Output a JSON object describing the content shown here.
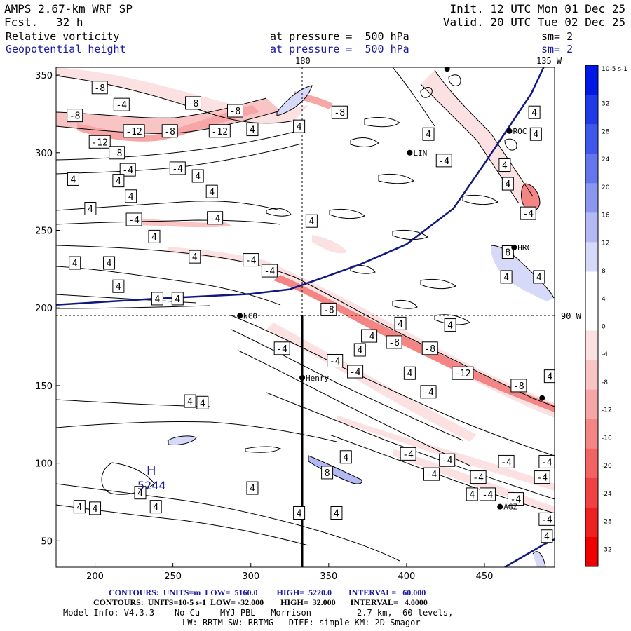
{
  "header": {
    "title": "AMPS 2.67-km WRF SP",
    "fcst_label": "Fcst.",
    "fcst_value": "32 h",
    "init": "Init. 12 UTC Mon 01 Dec 25",
    "valid": "Valid. 20 UTC Tue 02 Dec 25",
    "field1": "Relative vorticity",
    "field2": "Geopotential height",
    "level1": "at pressure =  500 hPa",
    "level2": "at pressure =  500 hPa",
    "sm1": "sm= 2",
    "sm2": "sm= 2"
  },
  "map_labels": {
    "top_180": "180",
    "top_135w": "135 W",
    "right_90w": "90 W",
    "high_letter": "H",
    "high_value": "5244"
  },
  "stations": [
    {
      "name": "ROC",
      "x": 466,
      "y": 314
    },
    {
      "name": "LIN",
      "x": 402,
      "y": 300
    },
    {
      "name": "HRC",
      "x": 469,
      "y": 239
    },
    {
      "name": "NCO",
      "x": 293,
      "y": 195
    },
    {
      "name": "Henry",
      "x": 333,
      "y": 155
    },
    {
      "name": "AGZ",
      "x": 460,
      "y": 72
    },
    {
      "name": "",
      "x": 487,
      "y": 142
    },
    {
      "name": "",
      "x": 426,
      "y": 354
    }
  ],
  "contour_labels": [
    {
      "v": "-8",
      "x": 203,
      "y": 342
    },
    {
      "v": "-4",
      "x": 217,
      "y": 331
    },
    {
      "v": "-8",
      "x": 263,
      "y": 332
    },
    {
      "v": "-8",
      "x": 290,
      "y": 327
    },
    {
      "v": "-8",
      "x": 187,
      "y": 324
    },
    {
      "v": "-12",
      "x": 225,
      "y": 314
    },
    {
      "v": "-8",
      "x": 248,
      "y": 314
    },
    {
      "v": "-12",
      "x": 280,
      "y": 314
    },
    {
      "v": "-12",
      "x": 203,
      "y": 307
    },
    {
      "v": "-8",
      "x": 214,
      "y": 300
    },
    {
      "v": "4",
      "x": 301,
      "y": 315
    },
    {
      "v": "4",
      "x": 331,
      "y": 317
    },
    {
      "v": "-8",
      "x": 357,
      "y": 326
    },
    {
      "v": "-4",
      "x": 253,
      "y": 290
    },
    {
      "v": "-4",
      "x": 221,
      "y": 289
    },
    {
      "v": "4",
      "x": 186,
      "y": 283
    },
    {
      "v": "4",
      "x": 215,
      "y": 282
    },
    {
      "v": "4",
      "x": 223,
      "y": 272
    },
    {
      "v": "4",
      "x": 266,
      "y": 285
    },
    {
      "v": "4",
      "x": 275,
      "y": 275
    },
    {
      "v": "-4",
      "x": 225,
      "y": 257
    },
    {
      "v": "-4",
      "x": 277,
      "y": 258
    },
    {
      "v": "4",
      "x": 197,
      "y": 264
    },
    {
      "v": "4",
      "x": 238,
      "y": 246
    },
    {
      "v": "4",
      "x": 187,
      "y": 229
    },
    {
      "v": "4",
      "x": 209,
      "y": 229
    },
    {
      "v": "-4",
      "x": 300,
      "y": 231
    },
    {
      "v": "-4",
      "x": 312,
      "y": 224
    },
    {
      "v": "4",
      "x": 264,
      "y": 233
    },
    {
      "v": "4",
      "x": 215,
      "y": 214
    },
    {
      "v": "4",
      "x": 240,
      "y": 206
    },
    {
      "v": "4",
      "x": 253,
      "y": 206
    },
    {
      "v": "4",
      "x": 339,
      "y": 256
    },
    {
      "v": "-8",
      "x": 350,
      "y": 199
    },
    {
      "v": "4",
      "x": 414,
      "y": 312
    },
    {
      "v": "4",
      "x": 482,
      "y": 326
    },
    {
      "v": "-4",
      "x": 424,
      "y": 295
    },
    {
      "v": "4",
      "x": 483,
      "y": 312
    },
    {
      "v": "4",
      "x": 463,
      "y": 292
    },
    {
      "v": "4",
      "x": 465,
      "y": 280
    },
    {
      "v": "-4",
      "x": 478,
      "y": 261
    },
    {
      "v": "8",
      "x": 465,
      "y": 236
    },
    {
      "v": "4",
      "x": 464,
      "y": 220
    },
    {
      "v": "4",
      "x": 485,
      "y": 220
    },
    {
      "v": "4",
      "x": 396,
      "y": 190
    },
    {
      "v": "-4",
      "x": 376,
      "y": 182
    },
    {
      "v": "-8",
      "x": 392,
      "y": 178
    },
    {
      "v": "4",
      "x": 428,
      "y": 189
    },
    {
      "v": "-8",
      "x": 415,
      "y": 174
    },
    {
      "v": "-4",
      "x": 320,
      "y": 174
    },
    {
      "v": "4",
      "x": 370,
      "y": 173
    },
    {
      "v": "-4",
      "x": 354,
      "y": 166
    },
    {
      "v": "-12",
      "x": 436,
      "y": 158
    },
    {
      "v": "4",
      "x": 492,
      "y": 156
    },
    {
      "v": "-4",
      "x": 367,
      "y": 159
    },
    {
      "v": "4",
      "x": 402,
      "y": 158
    },
    {
      "v": "-8",
      "x": 472,
      "y": 150
    },
    {
      "v": "-4",
      "x": 414,
      "y": 146
    },
    {
      "v": "-4",
      "x": 401,
      "y": 106
    },
    {
      "v": "-4",
      "x": 426,
      "y": 102
    },
    {
      "v": "-4",
      "x": 464,
      "y": 101
    },
    {
      "v": "-4",
      "x": 490,
      "y": 101
    },
    {
      "v": "4",
      "x": 261,
      "y": 140
    },
    {
      "v": "4",
      "x": 269,
      "y": 139
    },
    {
      "v": "4",
      "x": 361,
      "y": 104
    },
    {
      "v": "-4",
      "x": 416,
      "y": 93
    },
    {
      "v": "-4",
      "x": 446,
      "y": 91
    },
    {
      "v": "-4",
      "x": 487,
      "y": 91
    },
    {
      "v": "8",
      "x": 349,
      "y": 94
    },
    {
      "v": "4",
      "x": 301,
      "y": 84
    },
    {
      "v": "4",
      "x": 229,
      "y": 81
    },
    {
      "v": "4",
      "x": 442,
      "y": 80
    },
    {
      "v": "-4",
      "x": 452,
      "y": 80
    },
    {
      "v": "-4",
      "x": 470,
      "y": 77
    },
    {
      "v": "4",
      "x": 190,
      "y": 72
    },
    {
      "v": "4",
      "x": 200,
      "y": 71
    },
    {
      "v": "4",
      "x": 239,
      "y": 72
    },
    {
      "v": "4",
      "x": 331,
      "y": 68
    },
    {
      "v": "4",
      "x": 355,
      "y": 68
    },
    {
      "v": "-4",
      "x": 490,
      "y": 64
    },
    {
      "v": "4",
      "x": 490,
      "y": 53
    }
  ],
  "chart_data": {
    "type": "contour",
    "title": "Relative vorticity / Geopotential height at 500 hPa",
    "xlim": [
      175,
      495
    ],
    "ylim": [
      33,
      355
    ],
    "x_ticks": [
      200,
      250,
      300,
      350,
      400,
      450
    ],
    "y_ticks": [
      50,
      100,
      150,
      200,
      250,
      300,
      350
    ],
    "height_contours": [
      {
        "value": 5220,
        "points": [
          [
            175,
            202
          ],
          [
            240,
            206
          ],
          [
            300,
            209
          ],
          [
            325,
            212
          ],
          [
            345,
            219
          ],
          [
            370,
            228
          ],
          [
            400,
            241
          ],
          [
            430,
            264
          ],
          [
            450,
            293
          ],
          [
            468,
            320
          ],
          [
            480,
            338
          ],
          [
            488,
            355
          ]
        ]
      },
      {
        "value": 5160,
        "points": [
          [
            463,
            33
          ],
          [
            475,
            40
          ],
          [
            487,
            47
          ],
          [
            495,
            51
          ]
        ]
      }
    ],
    "colorbar": {
      "unit": "10-5 s-1",
      "ticks": [
        "32",
        "28",
        "24",
        "20",
        "16",
        "12",
        "8",
        "4",
        "0",
        "-4",
        "-8",
        "-12",
        "-16",
        "-20",
        "-24",
        "-28",
        "-32"
      ],
      "colors": [
        "#0018e6",
        "#1f3be8",
        "#4058ea",
        "#6576ec",
        "#8b96ef",
        "#b3b9f3",
        "#d6d9f8",
        "#ffffff",
        "#ffffff",
        "#fbe1e1",
        "#f8c4c4",
        "#f6a6a6",
        "#f48585",
        "#f26464",
        "#f04242",
        "#ee2121",
        "#ee0000"
      ]
    },
    "cross_marker": {
      "x": 333,
      "y": 196
    }
  },
  "footer": {
    "line1": "CONTOURS:  UNITS=m  LOW=  5160.0         HIGH=  5220.0        INTERVAL=   60.000",
    "line2": "CONTOURS:  UNITS=10-5 s-1  LOW= -32.000        HIGH=  32.000       INTERVAL=   4.0000",
    "line3": "Model Info: V4.3.3    No Cu    MYJ PBL   Morrison         2.7 km,  60 levels,",
    "line4": "LW: RRTM SW: RRTMG   DIFF: simple KM: 2D Smagor"
  }
}
